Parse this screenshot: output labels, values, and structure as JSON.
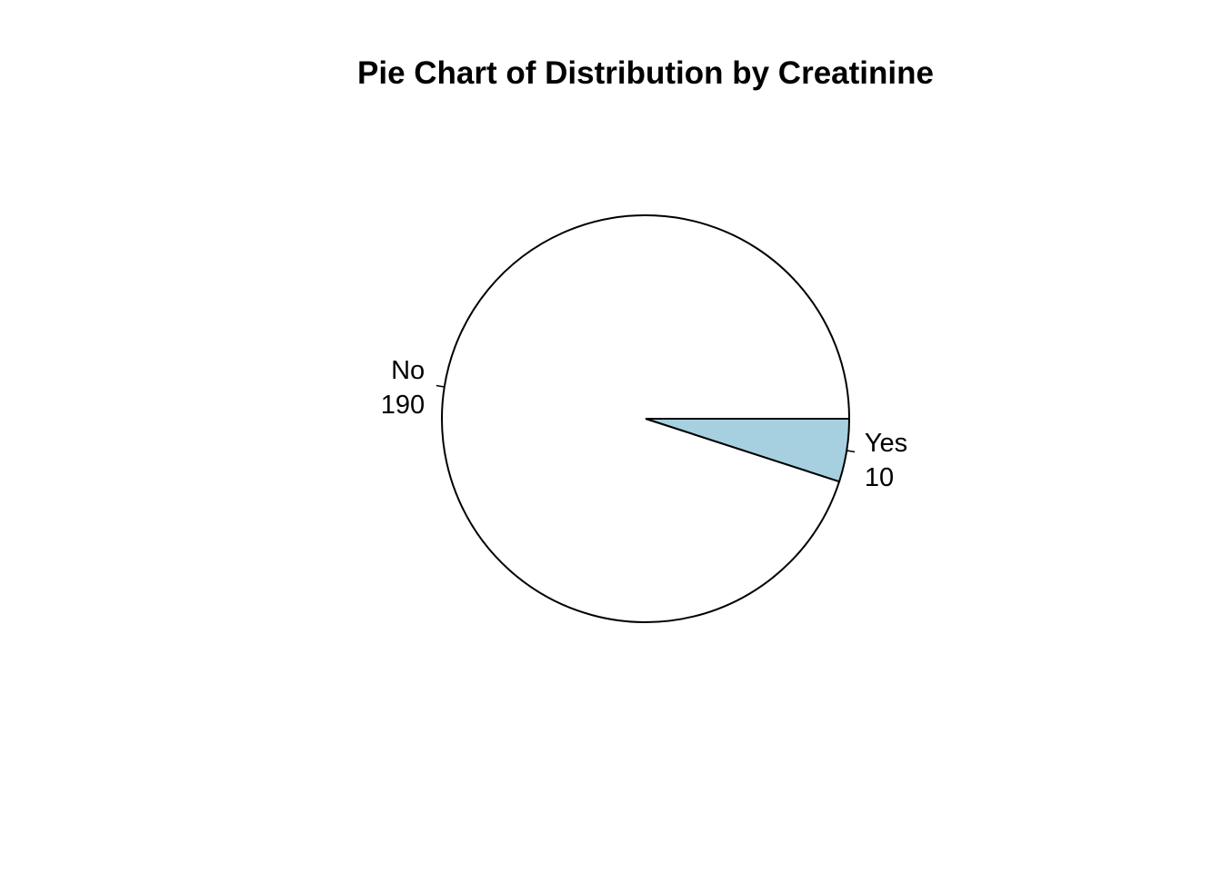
{
  "chart_data": {
    "type": "pie",
    "title": "Pie Chart of Distribution by Creatinine",
    "categories": [
      "Yes",
      "No"
    ],
    "values": [
      10,
      190
    ],
    "colors": [
      "#a6d0e0",
      "#ffffff"
    ],
    "start_angle": "3 o'clock",
    "direction": "clockwise"
  }
}
